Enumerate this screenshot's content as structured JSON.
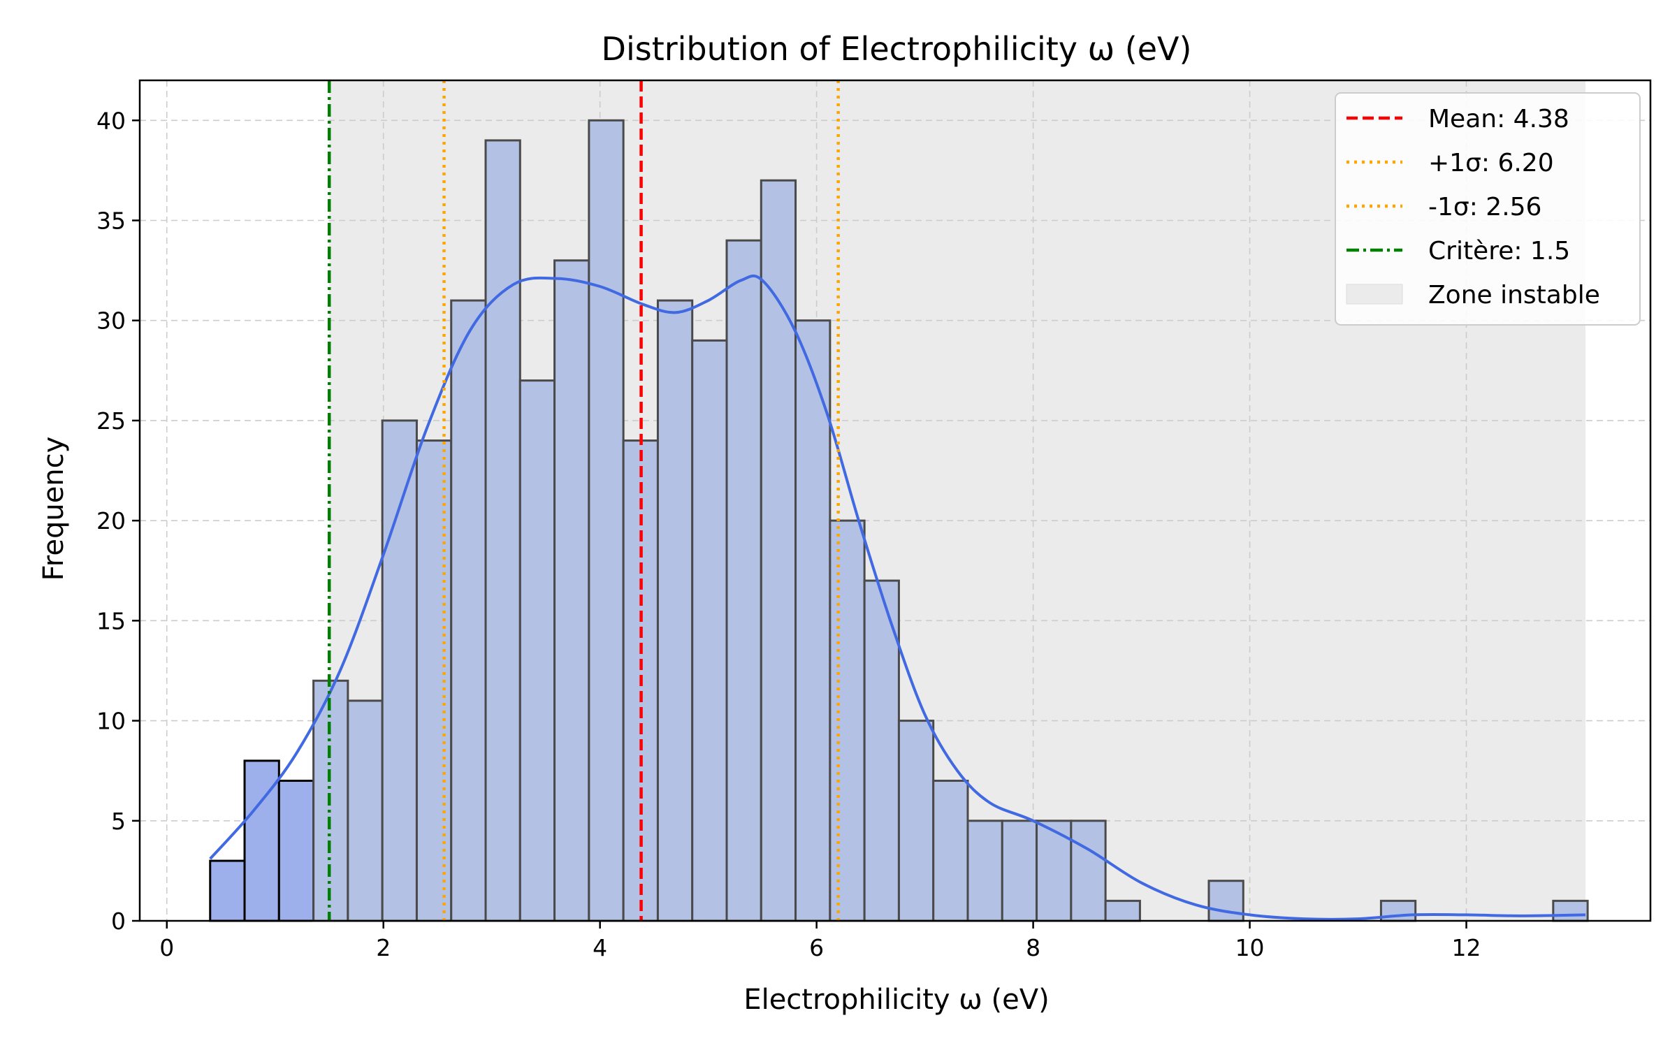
{
  "colors": {
    "bar_fill": "#b3c1e5",
    "bar_fill_left": "#9db0ec",
    "bar_edge": "#4a4a4a",
    "bar_edge_left": "#000000",
    "kde_line": "#4169e1",
    "mean_line": "#ff0000",
    "sigma_line": "#ffa500",
    "criterion_line": "#008000",
    "unstable_zone": "#ebebeb",
    "grid": "#cccccc"
  },
  "chart_data": {
    "type": "bar",
    "subtype": "histogram",
    "title": "Distribution of Electrophilicity ω (eV)",
    "xlabel": "Electrophilicity ω (eV)",
    "ylabel": "Frequency",
    "xlim": [
      -0.25,
      13.7
    ],
    "ylim": [
      0,
      42
    ],
    "xticks": [
      0,
      2,
      4,
      6,
      8,
      10,
      12
    ],
    "yticks": [
      0,
      5,
      10,
      15,
      20,
      25,
      30,
      35,
      40
    ],
    "grid": true,
    "legend_position": "top-right",
    "bin_start": 0.4,
    "bin_width": 0.318,
    "counts": [
      3,
      8,
      7,
      12,
      11,
      25,
      24,
      31,
      39,
      27,
      33,
      40,
      24,
      31,
      29,
      34,
      37,
      30,
      20,
      17,
      10,
      7,
      5,
      5,
      5,
      5,
      1,
      0,
      0,
      2,
      0,
      0,
      0,
      0,
      1,
      0,
      0,
      0,
      0,
      1
    ],
    "kde": {
      "x": [
        0.4,
        0.8,
        1.2,
        1.6,
        2.0,
        2.4,
        2.8,
        3.2,
        3.6,
        4.0,
        4.4,
        4.7,
        5.0,
        5.3,
        5.5,
        5.8,
        6.1,
        6.4,
        6.7,
        7.0,
        7.3,
        7.6,
        8.0,
        8.5,
        9.0,
        9.5,
        10.0,
        10.5,
        11.0,
        11.5,
        12.0,
        12.5,
        13.1
      ],
      "y": [
        3.1,
        5.5,
        8.4,
        12.5,
        18.3,
        24.6,
        29.5,
        31.8,
        32.1,
        31.7,
        30.8,
        30.4,
        31.0,
        32.0,
        32.0,
        29.5,
        25.3,
        19.8,
        14.7,
        10.3,
        7.5,
        5.9,
        5.0,
        3.6,
        1.9,
        0.8,
        0.3,
        0.1,
        0.1,
        0.3,
        0.3,
        0.25,
        0.3
      ]
    },
    "mean": 4.38,
    "plus_1sigma": 6.2,
    "minus_1sigma": 2.56,
    "criterion": 1.5,
    "unstable_zone": [
      1.5,
      13.1
    ],
    "legend": [
      {
        "key": "mean",
        "label": "Mean: 4.38"
      },
      {
        "key": "plus_sigma",
        "label": "+1σ: 6.20"
      },
      {
        "key": "minus_sigma",
        "label": "-1σ: 2.56"
      },
      {
        "key": "criterion",
        "label": "Critère: 1.5"
      },
      {
        "key": "zone",
        "label": "Zone instable"
      }
    ]
  }
}
